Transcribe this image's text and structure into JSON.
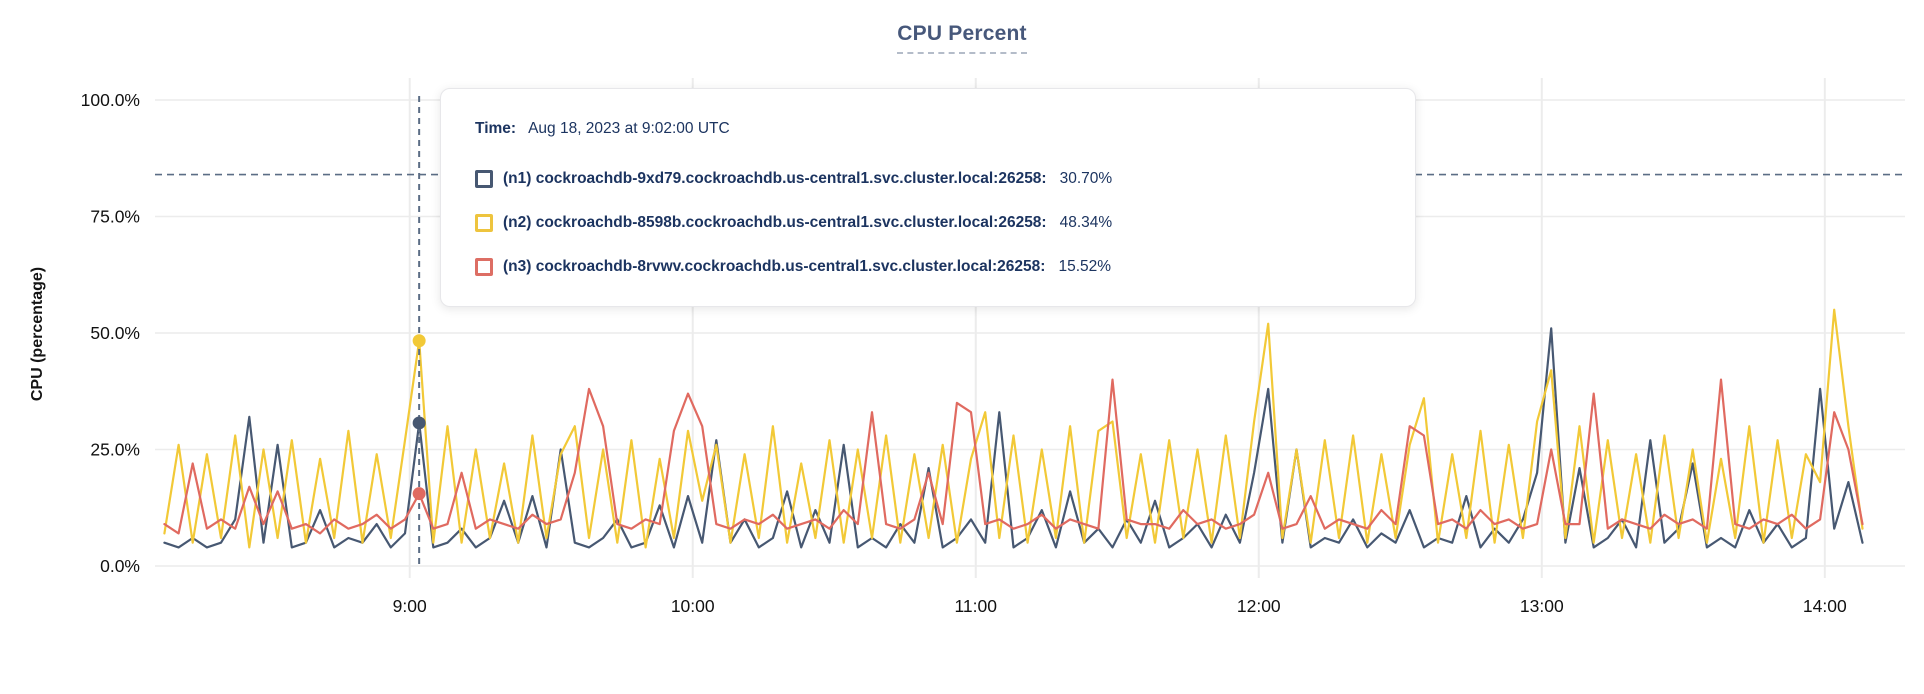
{
  "header": {
    "title": "CPU Percent"
  },
  "tooltip": {
    "time_label": "Time:",
    "time_value": "Aug 18, 2023 at 9:02:00 UTC",
    "rows": [
      {
        "node": "n1",
        "label": "(n1) cockroachdb-9xd79.cockroachdb.us-central1.svc.cluster.local:26258:",
        "value": "30.70%",
        "color": "#475872"
      },
      {
        "node": "n2",
        "label": "(n2) cockroachdb-8598b.cockroachdb.us-central1.svc.cluster.local:26258:",
        "value": "48.34%",
        "color": "#eec43e"
      },
      {
        "node": "n3",
        "label": "(n3) cockroachdb-8rvwv.cockroachdb.us-central1.svc.cluster.local:26258:",
        "value": "15.52%",
        "color": "#dd6e64"
      }
    ]
  },
  "colors": {
    "grid": "#ececec",
    "dashed_guides": "#5b6d85",
    "title_text": "#47587b",
    "tooltip_text": "#1c3460"
  },
  "chart_data": {
    "type": "line",
    "title": "CPU Percent",
    "xlabel": "",
    "ylabel": "CPU (percentage)",
    "ylim": [
      0,
      100
    ],
    "grid": true,
    "legend_position": "tooltip-overlay",
    "y_ticks": [
      {
        "value": 0,
        "label": "0.0%"
      },
      {
        "value": 25,
        "label": "25.0%"
      },
      {
        "value": 50,
        "label": "50.0%"
      },
      {
        "value": 75,
        "label": "75.0%"
      },
      {
        "value": 100,
        "label": "100.0%"
      }
    ],
    "x_ticks": [
      {
        "minute": 540,
        "label": "9:00"
      },
      {
        "minute": 600,
        "label": "10:00"
      },
      {
        "minute": 660,
        "label": "11:00"
      },
      {
        "minute": 720,
        "label": "12:00"
      },
      {
        "minute": 780,
        "label": "13:00"
      },
      {
        "minute": 840,
        "label": "14:00"
      }
    ],
    "x_domain_minutes": [
      486,
      857
    ],
    "sample_start_minute": 488,
    "sample_step_minutes": 3,
    "threshold_dashed_value": 84,
    "hover": {
      "minute": 542,
      "time_label": "Aug 18, 2023 at 9:02:00 UTC",
      "points": [
        {
          "node": "n1",
          "value": 30.7
        },
        {
          "node": "n2",
          "value": 48.34
        },
        {
          "node": "n3",
          "value": 15.52
        }
      ]
    },
    "series": [
      {
        "node": "n1",
        "name": "(n1) cockroachdb-9xd79.cockroachdb.us-central1.svc.cluster.local:26258",
        "color": "#475872",
        "values": [
          5,
          4,
          6,
          4,
          5,
          10,
          32,
          5,
          26,
          4,
          5,
          12,
          4,
          6,
          5,
          9,
          4,
          7,
          30.7,
          4,
          5,
          8,
          4,
          6,
          14,
          5,
          15,
          4,
          25,
          5,
          4,
          6,
          10,
          4,
          5,
          13,
          4,
          15,
          5,
          27,
          5,
          10,
          4,
          6,
          16,
          4,
          12,
          5,
          26,
          4,
          6,
          4,
          9,
          5,
          21,
          4,
          6,
          10,
          5,
          33,
          4,
          6,
          12,
          4,
          16,
          5,
          8,
          4,
          10,
          5,
          14,
          4,
          6,
          9,
          4,
          11,
          5,
          20,
          38,
          5,
          25,
          4,
          6,
          5,
          10,
          4,
          7,
          5,
          12,
          4,
          6,
          5,
          15,
          4,
          8,
          5,
          10,
          20,
          51,
          5,
          21,
          4,
          6,
          10,
          4,
          27,
          5,
          8,
          22,
          4,
          6,
          4,
          12,
          5,
          9,
          4,
          6,
          38,
          8,
          18,
          5
        ]
      },
      {
        "node": "n2",
        "name": "(n2) cockroachdb-8598b.cockroachdb.us-central1.svc.cluster.local:26258",
        "color": "#f2c937",
        "values": [
          7,
          26,
          5,
          24,
          6,
          28,
          4,
          25,
          6,
          27,
          5,
          23,
          6,
          29,
          5,
          24,
          6,
          27,
          48.34,
          5,
          30,
          5,
          25,
          6,
          22,
          5,
          28,
          6,
          24,
          30,
          6,
          25,
          5,
          27,
          4,
          23,
          6,
          29,
          14,
          26,
          5,
          24,
          6,
          30,
          5,
          22,
          6,
          27,
          5,
          25,
          6,
          28,
          5,
          24,
          6,
          26,
          5,
          23,
          33,
          6,
          28,
          5,
          25,
          6,
          30,
          5,
          29,
          31,
          6,
          24,
          5,
          27,
          6,
          25,
          5,
          28,
          6,
          31,
          52,
          6,
          25,
          5,
          27,
          6,
          28,
          5,
          24,
          6,
          26,
          36,
          5,
          24,
          6,
          29,
          5,
          26,
          6,
          31,
          42,
          6,
          30,
          5,
          27,
          6,
          24,
          5,
          28,
          6,
          25,
          5,
          23,
          6,
          30,
          5,
          27,
          6,
          24,
          18,
          55,
          30,
          8
        ]
      },
      {
        "node": "n3",
        "name": "(n3) cockroachdb-8rvwv.cockroachdb.us-central1.svc.cluster.local:26258",
        "color": "#e06a60",
        "values": [
          9,
          7,
          22,
          8,
          10,
          8,
          17,
          9,
          16,
          8,
          9,
          7,
          10,
          8,
          9,
          11,
          8,
          10,
          15.52,
          8,
          9,
          20,
          8,
          10,
          9,
          8,
          11,
          9,
          10,
          20,
          38,
          30,
          9,
          8,
          10,
          9,
          29,
          37,
          30,
          9,
          8,
          10,
          9,
          11,
          8,
          9,
          10,
          8,
          12,
          9,
          33,
          9,
          8,
          10,
          20,
          9,
          35,
          33,
          9,
          10,
          8,
          9,
          11,
          8,
          10,
          9,
          8,
          40,
          10,
          9,
          9,
          8,
          12,
          9,
          10,
          8,
          9,
          11,
          20,
          8,
          9,
          15,
          8,
          10,
          9,
          8,
          12,
          9,
          30,
          28,
          9,
          10,
          8,
          12,
          9,
          10,
          8,
          9,
          25,
          9,
          9,
          37,
          8,
          10,
          9,
          8,
          11,
          9,
          10,
          8,
          40,
          9,
          8,
          10,
          9,
          11,
          8,
          10,
          33,
          25,
          9
        ]
      }
    ]
  }
}
